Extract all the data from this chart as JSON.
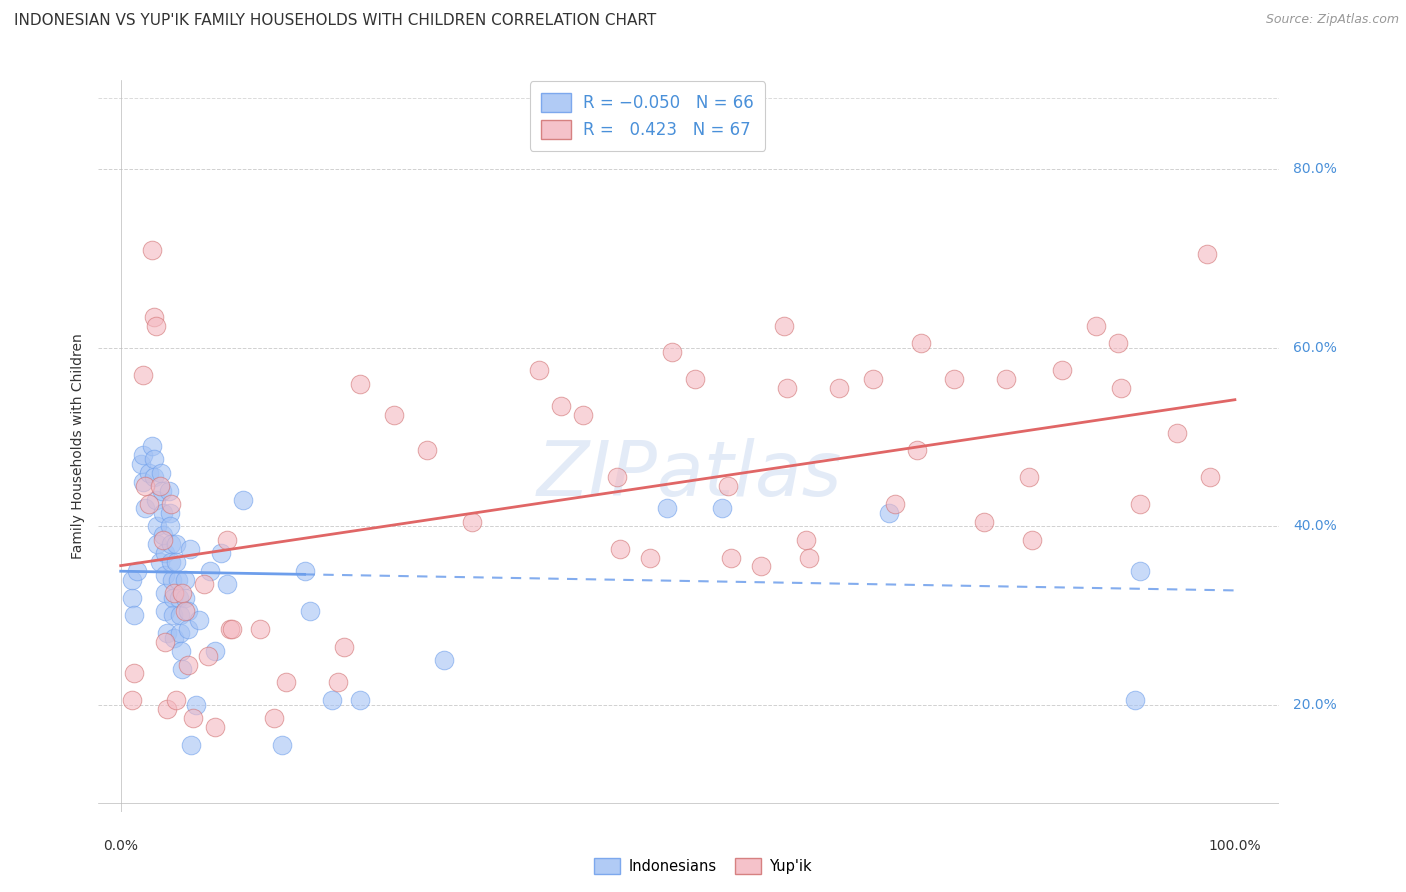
{
  "title": "INDONESIAN VS YUP'IK FAMILY HOUSEHOLDS WITH CHILDREN CORRELATION CHART",
  "source": "Source: ZipAtlas.com",
  "ylabel": "Family Households with Children",
  "watermark": "ZIPatlas",
  "blue_scatter_color": "#a4c2f4",
  "pink_scatter_color": "#f4b8c1",
  "blue_line_color": "#6d9eeb",
  "pink_line_color": "#e06666",
  "blue_scatter": [
    [
      0.01,
      0.32
    ],
    [
      0.01,
      0.34
    ],
    [
      0.012,
      0.3
    ],
    [
      0.015,
      0.35
    ],
    [
      0.018,
      0.47
    ],
    [
      0.02,
      0.45
    ],
    [
      0.02,
      0.48
    ],
    [
      0.022,
      0.42
    ],
    [
      0.025,
      0.46
    ],
    [
      0.028,
      0.49
    ],
    [
      0.03,
      0.475
    ],
    [
      0.03,
      0.455
    ],
    [
      0.032,
      0.43
    ],
    [
      0.033,
      0.4
    ],
    [
      0.033,
      0.38
    ],
    [
      0.035,
      0.36
    ],
    [
      0.036,
      0.46
    ],
    [
      0.037,
      0.44
    ],
    [
      0.038,
      0.415
    ],
    [
      0.038,
      0.39
    ],
    [
      0.04,
      0.37
    ],
    [
      0.04,
      0.345
    ],
    [
      0.04,
      0.325
    ],
    [
      0.04,
      0.305
    ],
    [
      0.042,
      0.28
    ],
    [
      0.043,
      0.44
    ],
    [
      0.044,
      0.415
    ],
    [
      0.044,
      0.4
    ],
    [
      0.045,
      0.38
    ],
    [
      0.045,
      0.36
    ],
    [
      0.046,
      0.34
    ],
    [
      0.047,
      0.32
    ],
    [
      0.047,
      0.3
    ],
    [
      0.048,
      0.275
    ],
    [
      0.05,
      0.38
    ],
    [
      0.05,
      0.36
    ],
    [
      0.051,
      0.34
    ],
    [
      0.052,
      0.32
    ],
    [
      0.053,
      0.3
    ],
    [
      0.053,
      0.28
    ],
    [
      0.054,
      0.26
    ],
    [
      0.055,
      0.24
    ],
    [
      0.058,
      0.34
    ],
    [
      0.058,
      0.32
    ],
    [
      0.06,
      0.305
    ],
    [
      0.06,
      0.285
    ],
    [
      0.062,
      0.375
    ],
    [
      0.063,
      0.155
    ],
    [
      0.068,
      0.2
    ],
    [
      0.07,
      0.295
    ],
    [
      0.08,
      0.35
    ],
    [
      0.085,
      0.26
    ],
    [
      0.09,
      0.37
    ],
    [
      0.095,
      0.335
    ],
    [
      0.11,
      0.43
    ],
    [
      0.145,
      0.155
    ],
    [
      0.165,
      0.35
    ],
    [
      0.17,
      0.305
    ],
    [
      0.19,
      0.205
    ],
    [
      0.215,
      0.205
    ],
    [
      0.29,
      0.25
    ],
    [
      0.49,
      0.42
    ],
    [
      0.54,
      0.42
    ],
    [
      0.69,
      0.415
    ],
    [
      0.91,
      0.205
    ],
    [
      0.915,
      0.35
    ]
  ],
  "pink_scatter": [
    [
      0.01,
      0.205
    ],
    [
      0.012,
      0.235
    ],
    [
      0.02,
      0.57
    ],
    [
      0.022,
      0.445
    ],
    [
      0.025,
      0.425
    ],
    [
      0.028,
      0.71
    ],
    [
      0.03,
      0.635
    ],
    [
      0.032,
      0.625
    ],
    [
      0.035,
      0.445
    ],
    [
      0.038,
      0.385
    ],
    [
      0.04,
      0.27
    ],
    [
      0.042,
      0.195
    ],
    [
      0.045,
      0.425
    ],
    [
      0.048,
      0.325
    ],
    [
      0.05,
      0.205
    ],
    [
      0.055,
      0.325
    ],
    [
      0.058,
      0.305
    ],
    [
      0.06,
      0.245
    ],
    [
      0.065,
      0.185
    ],
    [
      0.075,
      0.335
    ],
    [
      0.078,
      0.255
    ],
    [
      0.085,
      0.175
    ],
    [
      0.095,
      0.385
    ],
    [
      0.098,
      0.285
    ],
    [
      0.1,
      0.285
    ],
    [
      0.125,
      0.285
    ],
    [
      0.138,
      0.185
    ],
    [
      0.148,
      0.225
    ],
    [
      0.195,
      0.225
    ],
    [
      0.2,
      0.265
    ],
    [
      0.215,
      0.56
    ],
    [
      0.245,
      0.525
    ],
    [
      0.275,
      0.485
    ],
    [
      0.315,
      0.405
    ],
    [
      0.375,
      0.575
    ],
    [
      0.395,
      0.535
    ],
    [
      0.415,
      0.525
    ],
    [
      0.445,
      0.455
    ],
    [
      0.448,
      0.375
    ],
    [
      0.475,
      0.365
    ],
    [
      0.495,
      0.595
    ],
    [
      0.515,
      0.565
    ],
    [
      0.545,
      0.445
    ],
    [
      0.548,
      0.365
    ],
    [
      0.575,
      0.355
    ],
    [
      0.595,
      0.625
    ],
    [
      0.598,
      0.555
    ],
    [
      0.615,
      0.385
    ],
    [
      0.618,
      0.365
    ],
    [
      0.645,
      0.555
    ],
    [
      0.675,
      0.565
    ],
    [
      0.695,
      0.425
    ],
    [
      0.715,
      0.485
    ],
    [
      0.718,
      0.605
    ],
    [
      0.748,
      0.565
    ],
    [
      0.775,
      0.405
    ],
    [
      0.795,
      0.565
    ],
    [
      0.815,
      0.455
    ],
    [
      0.818,
      0.385
    ],
    [
      0.845,
      0.575
    ],
    [
      0.875,
      0.625
    ],
    [
      0.895,
      0.605
    ],
    [
      0.898,
      0.555
    ],
    [
      0.915,
      0.425
    ],
    [
      0.948,
      0.505
    ],
    [
      0.975,
      0.705
    ],
    [
      0.978,
      0.455
    ]
  ],
  "xlim": [
    -0.02,
    1.04
  ],
  "ylim": [
    0.08,
    0.9
  ],
  "y_ticks": [
    0.2,
    0.4,
    0.6,
    0.8
  ],
  "background_color": "#ffffff",
  "grid_color": "#cccccc",
  "blue_R": -0.05,
  "pink_R": 0.423,
  "title_fontsize": 11,
  "label_fontsize": 10,
  "tick_fontsize": 10,
  "source_fontsize": 9
}
